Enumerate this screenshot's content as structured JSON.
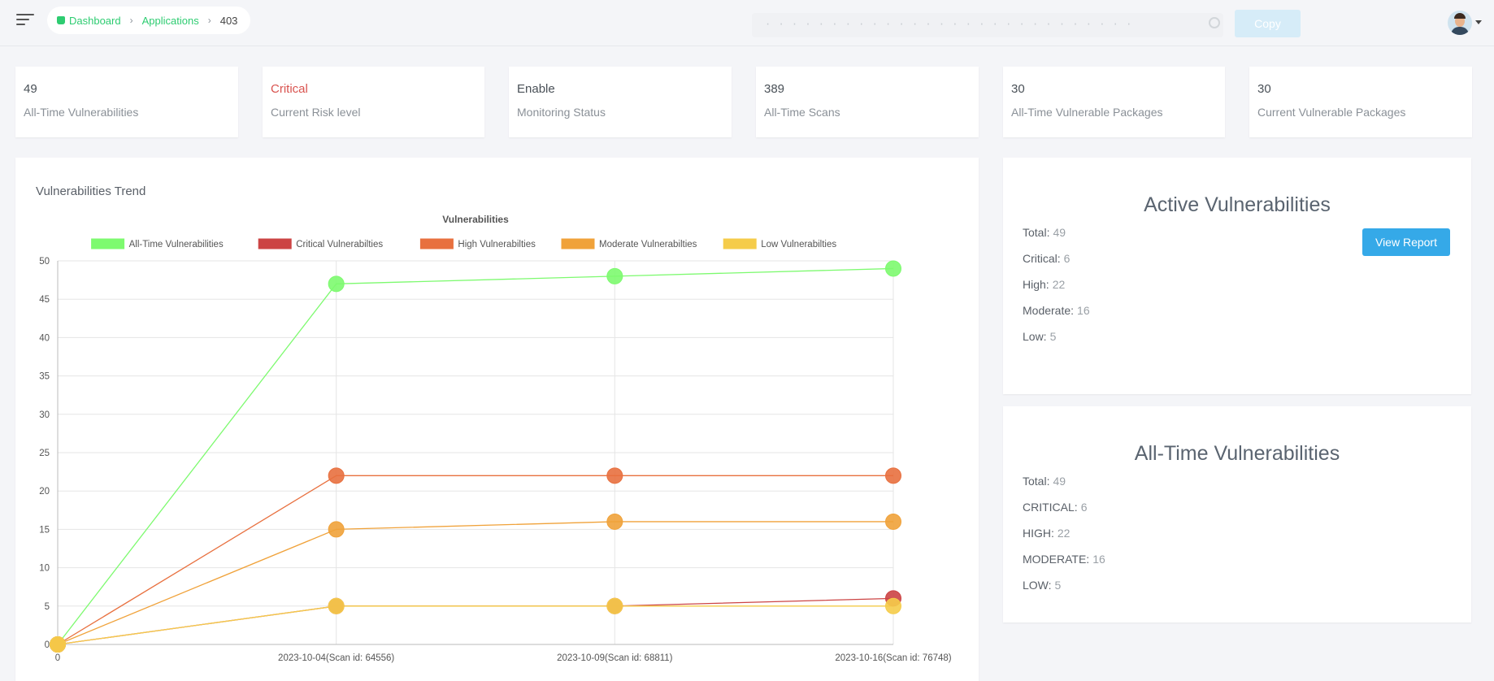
{
  "breadcrumb": {
    "items": [
      {
        "label": "Dashboard"
      },
      {
        "label": "Applications"
      },
      {
        "label": "403"
      }
    ]
  },
  "header": {
    "secret_value": "· · · · · · · · · · · · · · · · · · · · · · · · · · · ·",
    "copy_label": "Copy"
  },
  "stats": [
    {
      "value": "49",
      "label": "All-Time Vulnerabilities"
    },
    {
      "value": "Critical",
      "label": "Current Risk level",
      "status": "critical"
    },
    {
      "value": "Enable",
      "label": "Monitoring Status"
    },
    {
      "value": "389",
      "label": "All-Time Scans"
    },
    {
      "value": "30",
      "label": "All-Time Vulnerable Packages"
    },
    {
      "value": "30",
      "label": "Current Vulnerable Packages"
    }
  ],
  "trend": {
    "card_title": "Vulnerabilities Trend"
  },
  "chart_data": {
    "type": "line",
    "title": "Vulnerabilities",
    "xlabel": "",
    "ylabel": "",
    "categories": [
      "0",
      "2023-10-04(Scan id: 64556)",
      "2023-10-09(Scan id: 68811)",
      "2023-10-16(Scan id: 76748)"
    ],
    "ylim": [
      0,
      50
    ],
    "yticks": [
      0,
      5,
      10,
      15,
      20,
      25,
      30,
      35,
      40,
      45,
      50
    ],
    "grid": true,
    "legend_position": "top",
    "series": [
      {
        "name": "All-Time Vulnerabilities",
        "color": "#7dfa6f",
        "values": [
          0,
          47,
          48,
          49
        ]
      },
      {
        "name": "Critical Vulnerabilties",
        "color": "#cc4444",
        "values": [
          0,
          5,
          5,
          6
        ]
      },
      {
        "name": "High Vulnerabilties",
        "color": "#e8703f",
        "values": [
          0,
          22,
          22,
          22
        ]
      },
      {
        "name": "Moderate Vulnerabilties",
        "color": "#f0a23a",
        "values": [
          0,
          15,
          16,
          16
        ]
      },
      {
        "name": "Low Vulnerabilties",
        "color": "#f5cc4a",
        "values": [
          0,
          5,
          5,
          5
        ]
      }
    ]
  },
  "active": {
    "title": "Active Vulnerabilities",
    "button_label": "View Report",
    "rows": [
      {
        "label": "Total:",
        "value": "49"
      },
      {
        "label": "Critical:",
        "value": "6"
      },
      {
        "label": "High:",
        "value": "22"
      },
      {
        "label": "Moderate:",
        "value": "16"
      },
      {
        "label": "Low:",
        "value": "5"
      }
    ]
  },
  "alltime": {
    "title": "All-Time Vulnerabilities",
    "rows": [
      {
        "label": "Total:",
        "value": "49"
      },
      {
        "label": "CRITICAL:",
        "value": "6"
      },
      {
        "label": "HIGH:",
        "value": "22"
      },
      {
        "label": "MODERATE:",
        "value": "16"
      },
      {
        "label": "LOW:",
        "value": "5"
      }
    ]
  }
}
